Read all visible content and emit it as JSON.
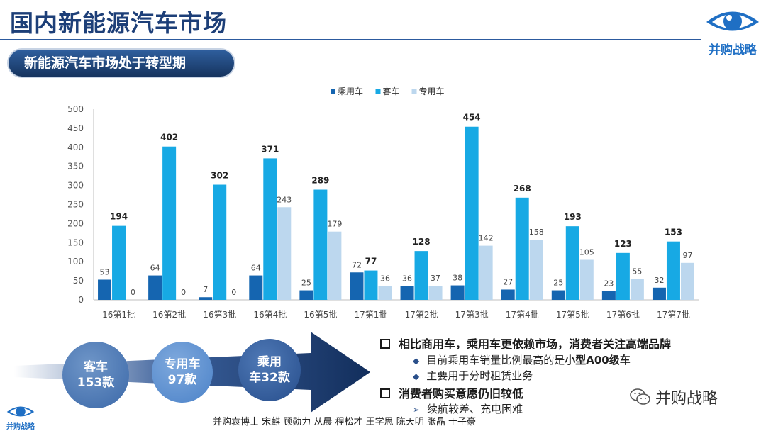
{
  "header": {
    "title": "国内新能源汽车市场",
    "subtitle": "新能源汽车市场处于转型期",
    "logo_text": "并购战略"
  },
  "colors": {
    "title": "#1d3f78",
    "passenger": "#1565b0",
    "bus": "#17a9e4",
    "special": "#bcd7ee"
  },
  "chart_data": {
    "type": "bar",
    "title": "",
    "xlabel": "",
    "ylabel": "",
    "ylim": [
      0,
      500
    ],
    "yticks": [
      0,
      50,
      100,
      150,
      200,
      250,
      300,
      350,
      400,
      450,
      500
    ],
    "grid": false,
    "legend_position": "top",
    "categories": [
      "16第1批",
      "16第2批",
      "16第3批",
      "16第4批",
      "16第5批",
      "17第1批",
      "17第2批",
      "17第3批",
      "17第4批",
      "17第5批",
      "17第6批",
      "17第7批"
    ],
    "series": [
      {
        "name": "乘用车",
        "color": "#1565b0",
        "values": [
          53,
          64,
          7,
          64,
          25,
          72,
          36,
          38,
          27,
          25,
          23,
          32
        ]
      },
      {
        "name": "客车",
        "color": "#17a9e4",
        "values": [
          194,
          402,
          302,
          371,
          289,
          77,
          128,
          454,
          268,
          193,
          123,
          153
        ]
      },
      {
        "name": "专用车",
        "color": "#bcd7ee",
        "values": [
          0,
          0,
          0,
          243,
          179,
          36,
          37,
          142,
          158,
          105,
          55,
          97
        ]
      }
    ]
  },
  "flow": {
    "bubbles": [
      {
        "line1": "客车",
        "line2": "153款"
      },
      {
        "line1": "专用车",
        "line2": "97款"
      },
      {
        "line1": "乘用",
        "line2": "车32款"
      }
    ]
  },
  "points": [
    {
      "text": "相比商用车，乘用车更依赖市场，消费者关注高端品牌",
      "subs": [
        {
          "pre": "目前乘用车销量比例最高的是",
          "highlight": "小型A00级车"
        },
        {
          "pre": "主要用于分时租赁业务",
          "highlight": ""
        }
      ]
    },
    {
      "text": "消费者购买意愿仍旧较低",
      "subs": [
        {
          "pre": "续航较差、充电困难",
          "highlight": ""
        }
      ]
    }
  ],
  "wechat_label": "并购战略",
  "footer": "并购袁博士 宋麒 顾勋力 从晨 程松才 王学思 陈天明 张晶 于子豪"
}
